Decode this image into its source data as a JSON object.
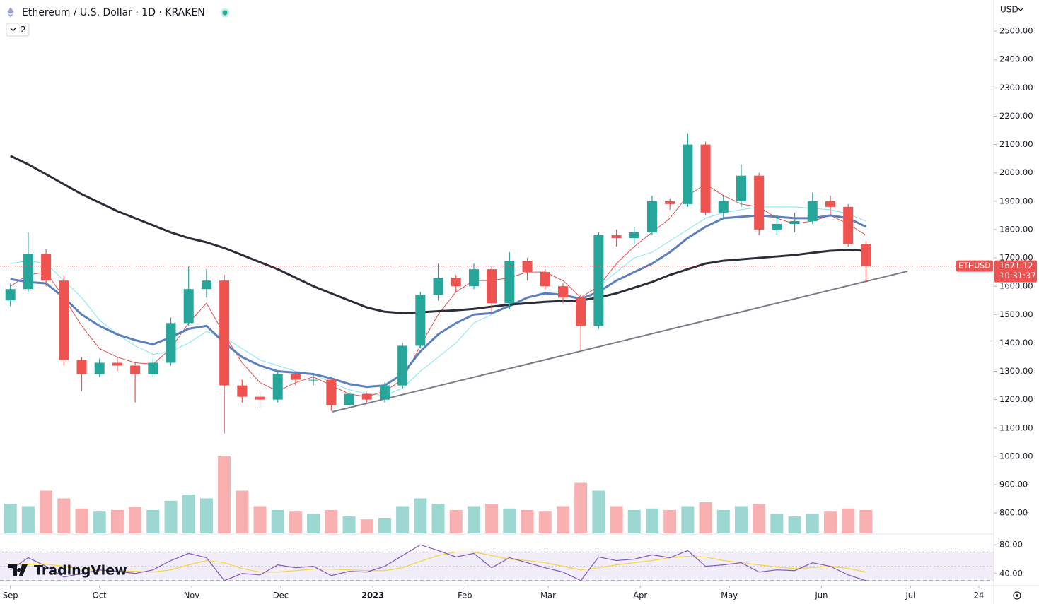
{
  "chart_data": {
    "type": "candlestick",
    "title": "Ethereum / U.S. Dollar · 1D · KRAKEN",
    "interval_badge": "2",
    "currency": "USD",
    "symbol": "ETHUSD",
    "countdown": "10:31:37",
    "brand": "TradingView",
    "up_color": "#26a69a",
    "down_color": "#ef5350",
    "x": [
      4,
      10,
      16,
      22,
      28,
      34,
      40,
      46,
      52,
      58,
      64,
      70,
      76,
      82,
      88,
      94,
      100,
      106,
      112,
      118,
      124,
      130,
      136,
      142,
      148,
      154,
      160,
      166,
      172,
      178,
      184,
      190,
      196,
      202,
      208,
      214,
      220,
      226,
      232,
      238,
      244,
      250,
      256,
      262,
      268,
      274,
      280,
      286,
      292
    ],
    "open": [
      1550,
      1590,
      1715,
      1620,
      1340,
      1290,
      1330,
      1320,
      1290,
      1330,
      1470,
      1590,
      1620,
      1250,
      1210,
      1200,
      1290,
      1270,
      1270,
      1180,
      1220,
      1200,
      1250,
      1390,
      1570,
      1630,
      1600,
      1660,
      1540,
      1690,
      1650,
      1600,
      1560,
      1460,
      1780,
      1770,
      1790,
      1900,
      1890,
      2100,
      1860,
      1900,
      1990,
      1800,
      1820,
      1830,
      1900,
      1880,
      1750
    ],
    "high": [
      1610,
      1790,
      1730,
      1640,
      1350,
      1345,
      1350,
      1330,
      1345,
      1490,
      1670,
      1660,
      1640,
      1270,
      1225,
      1300,
      1300,
      1290,
      1275,
      1230,
      1225,
      1260,
      1400,
      1580,
      1680,
      1640,
      1680,
      1670,
      1720,
      1700,
      1660,
      1610,
      1570,
      1790,
      1800,
      1810,
      1920,
      1910,
      2140,
      2110,
      1920,
      2030,
      2000,
      1850,
      1860,
      1930,
      1920,
      1890,
      1760
    ],
    "low": [
      1530,
      1580,
      1600,
      1320,
      1230,
      1280,
      1300,
      1190,
      1280,
      1320,
      1460,
      1560,
      1080,
      1190,
      1170,
      1190,
      1250,
      1250,
      1160,
      1170,
      1190,
      1190,
      1240,
      1380,
      1550,
      1580,
      1590,
      1500,
      1520,
      1620,
      1590,
      1540,
      1370,
      1450,
      1740,
      1750,
      1780,
      1870,
      1880,
      1850,
      1840,
      1880,
      1780,
      1780,
      1790,
      1820,
      1850,
      1740,
      1620
    ],
    "close": [
      1590,
      1715,
      1620,
      1340,
      1290,
      1330,
      1320,
      1290,
      1330,
      1470,
      1590,
      1620,
      1250,
      1210,
      1200,
      1290,
      1270,
      1270,
      1180,
      1220,
      1200,
      1250,
      1390,
      1570,
      1630,
      1600,
      1660,
      1540,
      1690,
      1650,
      1600,
      1560,
      1460,
      1780,
      1770,
      1790,
      1900,
      1890,
      2100,
      1860,
      1900,
      1990,
      1800,
      1820,
      1830,
      1900,
      1880,
      1750,
      1671.12
    ],
    "moving_averages": [
      {
        "color": "#7fe5f0",
        "width": 1,
        "values": [
          1680,
          1690,
          1680,
          1620,
          1560,
          1480,
          1430,
          1390,
          1360,
          1370,
          1400,
          1440,
          1420,
          1380,
          1340,
          1320,
          1300,
          1290,
          1260,
          1235,
          1220,
          1215,
          1240,
          1300,
          1350,
          1400,
          1470,
          1500,
          1530,
          1560,
          1580,
          1570,
          1560,
          1600,
          1650,
          1700,
          1720,
          1760,
          1800,
          1840,
          1860,
          1870,
          1880,
          1880,
          1880,
          1875,
          1870,
          1855,
          1830
        ]
      },
      {
        "color": "#e0534f",
        "width": 1,
        "values": [
          1600,
          1640,
          1650,
          1560,
          1460,
          1380,
          1350,
          1330,
          1325,
          1380,
          1470,
          1540,
          1430,
          1330,
          1260,
          1230,
          1260,
          1280,
          1250,
          1220,
          1210,
          1230,
          1270,
          1390,
          1500,
          1580,
          1620,
          1620,
          1630,
          1650,
          1650,
          1620,
          1560,
          1600,
          1680,
          1740,
          1790,
          1840,
          1920,
          1960,
          1920,
          1890,
          1880,
          1840,
          1820,
          1830,
          1850,
          1820,
          1780
        ]
      },
      {
        "color": "#5b7fbf",
        "width": 3,
        "values": [
          1625,
          1615,
          1610,
          1560,
          1500,
          1460,
          1430,
          1410,
          1395,
          1420,
          1450,
          1460,
          1400,
          1350,
          1320,
          1300,
          1295,
          1290,
          1275,
          1255,
          1245,
          1250,
          1290,
          1370,
          1430,
          1470,
          1500,
          1505,
          1530,
          1560,
          1575,
          1570,
          1555,
          1580,
          1620,
          1650,
          1680,
          1720,
          1770,
          1810,
          1840,
          1845,
          1850,
          1845,
          1840,
          1840,
          1850,
          1840,
          1810
        ]
      },
      {
        "color": "#2a2e39",
        "width": 3,
        "values": [
          2060,
          2030,
          1995,
          1960,
          1925,
          1895,
          1865,
          1840,
          1815,
          1790,
          1770,
          1755,
          1735,
          1710,
          1685,
          1660,
          1630,
          1600,
          1575,
          1550,
          1525,
          1510,
          1505,
          1508,
          1512,
          1515,
          1520,
          1528,
          1535,
          1540,
          1545,
          1548,
          1550,
          1560,
          1575,
          1595,
          1615,
          1640,
          1660,
          1680,
          1690,
          1695,
          1700,
          1705,
          1710,
          1718,
          1725,
          1728,
          1725
        ]
      }
    ],
    "trendline": {
      "x": [
        112.4,
        306
      ],
      "values": [
        1157,
        1653
      ],
      "color": "#787b86"
    },
    "ylim": [
      728,
      2610
    ],
    "yticks": [
      {
        "value": 2500,
        "label": "2500.00"
      },
      {
        "value": 2400,
        "label": "2400.00"
      },
      {
        "value": 2300,
        "label": "2300.00"
      },
      {
        "value": 2200,
        "label": "2200.00"
      },
      {
        "value": 2100,
        "label": "2100.00"
      },
      {
        "value": 2000,
        "label": "2000.00"
      },
      {
        "value": 1900,
        "label": "1900.00"
      },
      {
        "value": 1800,
        "label": "1800.00"
      },
      {
        "value": 1700,
        "label": "1700.00"
      },
      {
        "value": 1600,
        "label": "1600.00"
      },
      {
        "value": 1500,
        "label": "1500.00"
      },
      {
        "value": 1400,
        "label": "1400.00"
      },
      {
        "value": 1300,
        "label": "1300.00"
      },
      {
        "value": 1200,
        "label": "1200.00"
      },
      {
        "value": 1100,
        "label": "1100.00"
      },
      {
        "value": 1000,
        "label": "1000.00"
      },
      {
        "value": 900,
        "label": "900.00"
      },
      {
        "value": 800,
        "label": "800.00"
      }
    ],
    "xlim": [
      0.5,
      335
    ],
    "xticks": [
      {
        "value": 4,
        "label": "Sep"
      },
      {
        "value": 34,
        "label": "Oct"
      },
      {
        "value": 65,
        "label": "Nov"
      },
      {
        "value": 95,
        "label": "Dec"
      },
      {
        "value": 126,
        "label": "2023"
      },
      {
        "value": 157,
        "label": "Feb"
      },
      {
        "value": 185,
        "label": "Mar"
      },
      {
        "value": 216,
        "label": "Apr"
      },
      {
        "value": 246,
        "label": "May"
      },
      {
        "value": 277,
        "label": "Jun"
      },
      {
        "value": 307,
        "label": "Jul"
      },
      {
        "value": 330,
        "label": "24"
      }
    ],
    "volume": {
      "ylim": [
        0,
        100
      ],
      "values": [
        38,
        35,
        55,
        45,
        32,
        28,
        30,
        34,
        30,
        42,
        50,
        45,
        100,
        55,
        35,
        30,
        28,
        25,
        30,
        22,
        18,
        20,
        35,
        45,
        38,
        30,
        35,
        38,
        32,
        30,
        28,
        35,
        65,
        55,
        35,
        30,
        32,
        30,
        35,
        40,
        30,
        35,
        38,
        25,
        22,
        25,
        28,
        32,
        30
      ]
    },
    "rsi": {
      "color": "#7e57c2",
      "ma_color": "#f5d33b",
      "ylim": [
        24,
        96
      ],
      "yticks": [
        {
          "value": 80,
          "label": "80.00"
        },
        {
          "value": 40,
          "label": "40.00"
        }
      ],
      "levels": [
        70,
        50,
        30
      ],
      "values": [
        45,
        62,
        50,
        35,
        40,
        45,
        43,
        40,
        45,
        58,
        68,
        62,
        30,
        40,
        38,
        52,
        48,
        50,
        37,
        43,
        42,
        50,
        65,
        80,
        72,
        63,
        68,
        48,
        62,
        55,
        48,
        42,
        30,
        63,
        58,
        60,
        66,
        62,
        72,
        50,
        52,
        55,
        42,
        45,
        44,
        55,
        50,
        38,
        30
      ],
      "ma_values": [
        52,
        53,
        53,
        50,
        46,
        44,
        44,
        43,
        42,
        45,
        52,
        58,
        55,
        47,
        42,
        42,
        44,
        46,
        46,
        45,
        44,
        44,
        48,
        57,
        65,
        70,
        70,
        65,
        60,
        58,
        55,
        50,
        45,
        48,
        52,
        55,
        58,
        62,
        64,
        63,
        58,
        55,
        52,
        49,
        47,
        48,
        50,
        47,
        42
      ]
    }
  }
}
